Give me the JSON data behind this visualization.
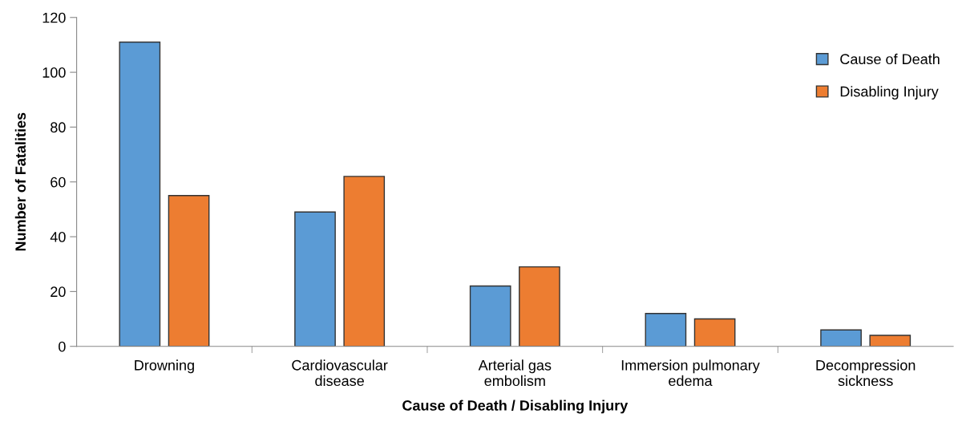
{
  "chart_data": {
    "type": "bar",
    "xlabel": "Cause of Death / Disabling Injury",
    "ylabel": "Number of Fatalities",
    "categories": [
      "Drowning",
      "Cardiovascular\ndisease",
      "Arterial gas\nembolism",
      "Immersion pulmonary\nedema",
      "Decompression\nsickness"
    ],
    "series": [
      {
        "name": "Cause of Death",
        "color": "#5b9bd5",
        "values": [
          111,
          49,
          22,
          12,
          6
        ]
      },
      {
        "name": "Disabling Injury",
        "color": "#ed7d31",
        "values": [
          55,
          62,
          29,
          10,
          4
        ]
      }
    ],
    "ylim": [
      0,
      120
    ],
    "yticks": [
      0,
      20,
      40,
      60,
      80,
      100,
      120
    ],
    "grid": false,
    "legend": "top right"
  }
}
